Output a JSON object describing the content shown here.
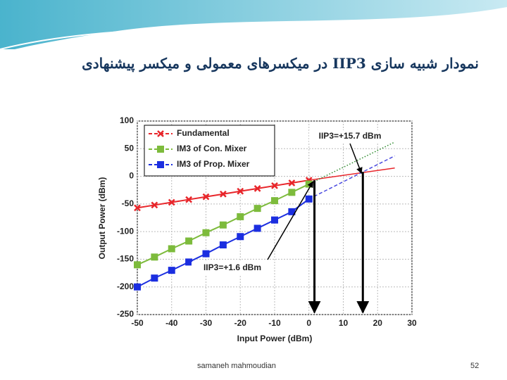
{
  "slide": {
    "title": "نمودار شبیه سازی IIP3 در میکسرهای معمولی و میکسر پیشنهادی",
    "footer": "samaneh mahmoudian",
    "page_number": "52"
  },
  "chart_data": {
    "type": "line",
    "x_label": "Input Power (dBm)",
    "y_label": "Output Power (dBm)",
    "x": [
      -50,
      -45,
      -40,
      -35,
      -30,
      -25,
      -20,
      -15,
      -10,
      -5,
      0
    ],
    "series": [
      {
        "name": "Fundamental",
        "color": "#e8262b",
        "marker": "x",
        "values": [
          -57,
          -52,
          -47,
          -42,
          -37,
          -32,
          -27,
          -22,
          -17,
          -12,
          -7
        ]
      },
      {
        "name": "IM3 of Con. Mixer",
        "color": "#7dbb3c",
        "marker": "square",
        "values": [
          -160,
          -146,
          -131,
          -117,
          -102,
          -88,
          -73,
          -58,
          -44,
          -29,
          -14
        ]
      },
      {
        "name": "IM3 of Prop. Mixer",
        "color": "#1b2ee0",
        "marker": "square",
        "values": [
          -200,
          -184,
          -170,
          -155,
          -140,
          -124,
          -109,
          -94,
          -79,
          -64,
          -41
        ]
      }
    ],
    "extrapolations": [
      {
        "color": "#e8262b",
        "style": "solid",
        "x": [
          0,
          25
        ],
        "values": [
          -7,
          15
        ]
      },
      {
        "color": "#2a8a2a",
        "style": "dotted",
        "x": [
          0,
          25
        ],
        "values": [
          -14,
          62
        ]
      },
      {
        "color": "#4b4be0",
        "style": "dashed",
        "x": [
          0,
          25
        ],
        "values": [
          -41,
          37
        ]
      }
    ],
    "annotations": [
      {
        "text": "IIP3=+15.7 dBm",
        "x": 15.7,
        "y": 8
      },
      {
        "text": "IIP3=+1.6 dBm",
        "x": 1.6,
        "y": -7
      }
    ],
    "xlim": [
      -50,
      30
    ],
    "xticks": [
      -50,
      -40,
      -30,
      -20,
      -10,
      0,
      10,
      20,
      30
    ],
    "ylim": [
      -250,
      100
    ],
    "yticks": [
      -250,
      -200,
      -150,
      -100,
      -50,
      0,
      50,
      100
    ],
    "grid": true,
    "legend": "upper left"
  }
}
